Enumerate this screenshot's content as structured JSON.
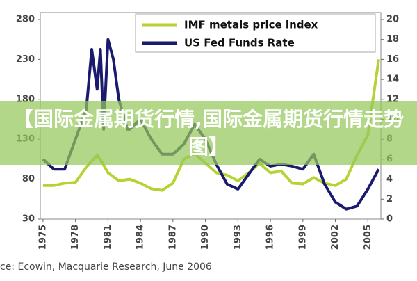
{
  "chart_data": {
    "type": "line",
    "title": "【国际金属期货行情,国际金属期货行情走势图】",
    "source": "ce: Ecowin, Macquarie Research, June 2006",
    "xlim": [
      1974.75,
      2006.2
    ],
    "xticks": [
      1975,
      1978,
      1981,
      1984,
      1987,
      1990,
      1993,
      1996,
      1999,
      2002,
      2005
    ],
    "ylim": [
      30,
      280
    ],
    "yticks": [
      30,
      80,
      130,
      180,
      230,
      280
    ],
    "y2lim": [
      0,
      20
    ],
    "y2ticks": [
      0,
      2,
      4,
      6,
      8,
      10,
      12,
      14,
      16,
      18,
      20
    ],
    "legend": "top-right",
    "series": [
      {
        "name": "IMF metals price index",
        "color": "#b5d334",
        "x": [
          1975,
          1976,
          1977,
          1978,
          1979,
          1980,
          1980.5,
          1981,
          1982,
          1983,
          1984,
          1985,
          1986,
          1987,
          1988,
          1989,
          1990,
          1991,
          1992,
          1993,
          1994,
          1995,
          1996,
          1997,
          1998,
          1999,
          2000,
          2001,
          2002,
          2003,
          2004,
          2005,
          2006
        ],
        "values": [
          72,
          72,
          75,
          76,
          95,
          110,
          100,
          88,
          78,
          80,
          75,
          68,
          66,
          75,
          105,
          112,
          100,
          88,
          85,
          78,
          88,
          100,
          88,
          90,
          75,
          74,
          82,
          75,
          72,
          80,
          110,
          135,
          230
        ]
      },
      {
        "name": "US Fed Funds Rate",
        "color": "#1a1a6e",
        "axis": "y2",
        "x": [
          1975,
          1976,
          1977,
          1978,
          1979,
          1979.5,
          1980,
          1980.3,
          1980.6,
          1981,
          1981.5,
          1982,
          1982.8,
          1983,
          1984,
          1985,
          1986,
          1987,
          1988,
          1989,
          1990,
          1991,
          1992,
          1993,
          1994,
          1995,
          1996,
          1997,
          1998,
          1999,
          2000,
          2001,
          2002,
          2003,
          2004,
          2005,
          2006
        ],
        "values": [
          6,
          5,
          5,
          8,
          11,
          17,
          13,
          17,
          9,
          18,
          16,
          12,
          9,
          9,
          10,
          8,
          6.5,
          6.5,
          7.5,
          9.5,
          8,
          5.5,
          3.5,
          3,
          4.5,
          6,
          5.3,
          5.5,
          5.3,
          5,
          6.5,
          3.5,
          1.7,
          1,
          1.3,
          3,
          5
        ]
      }
    ]
  }
}
